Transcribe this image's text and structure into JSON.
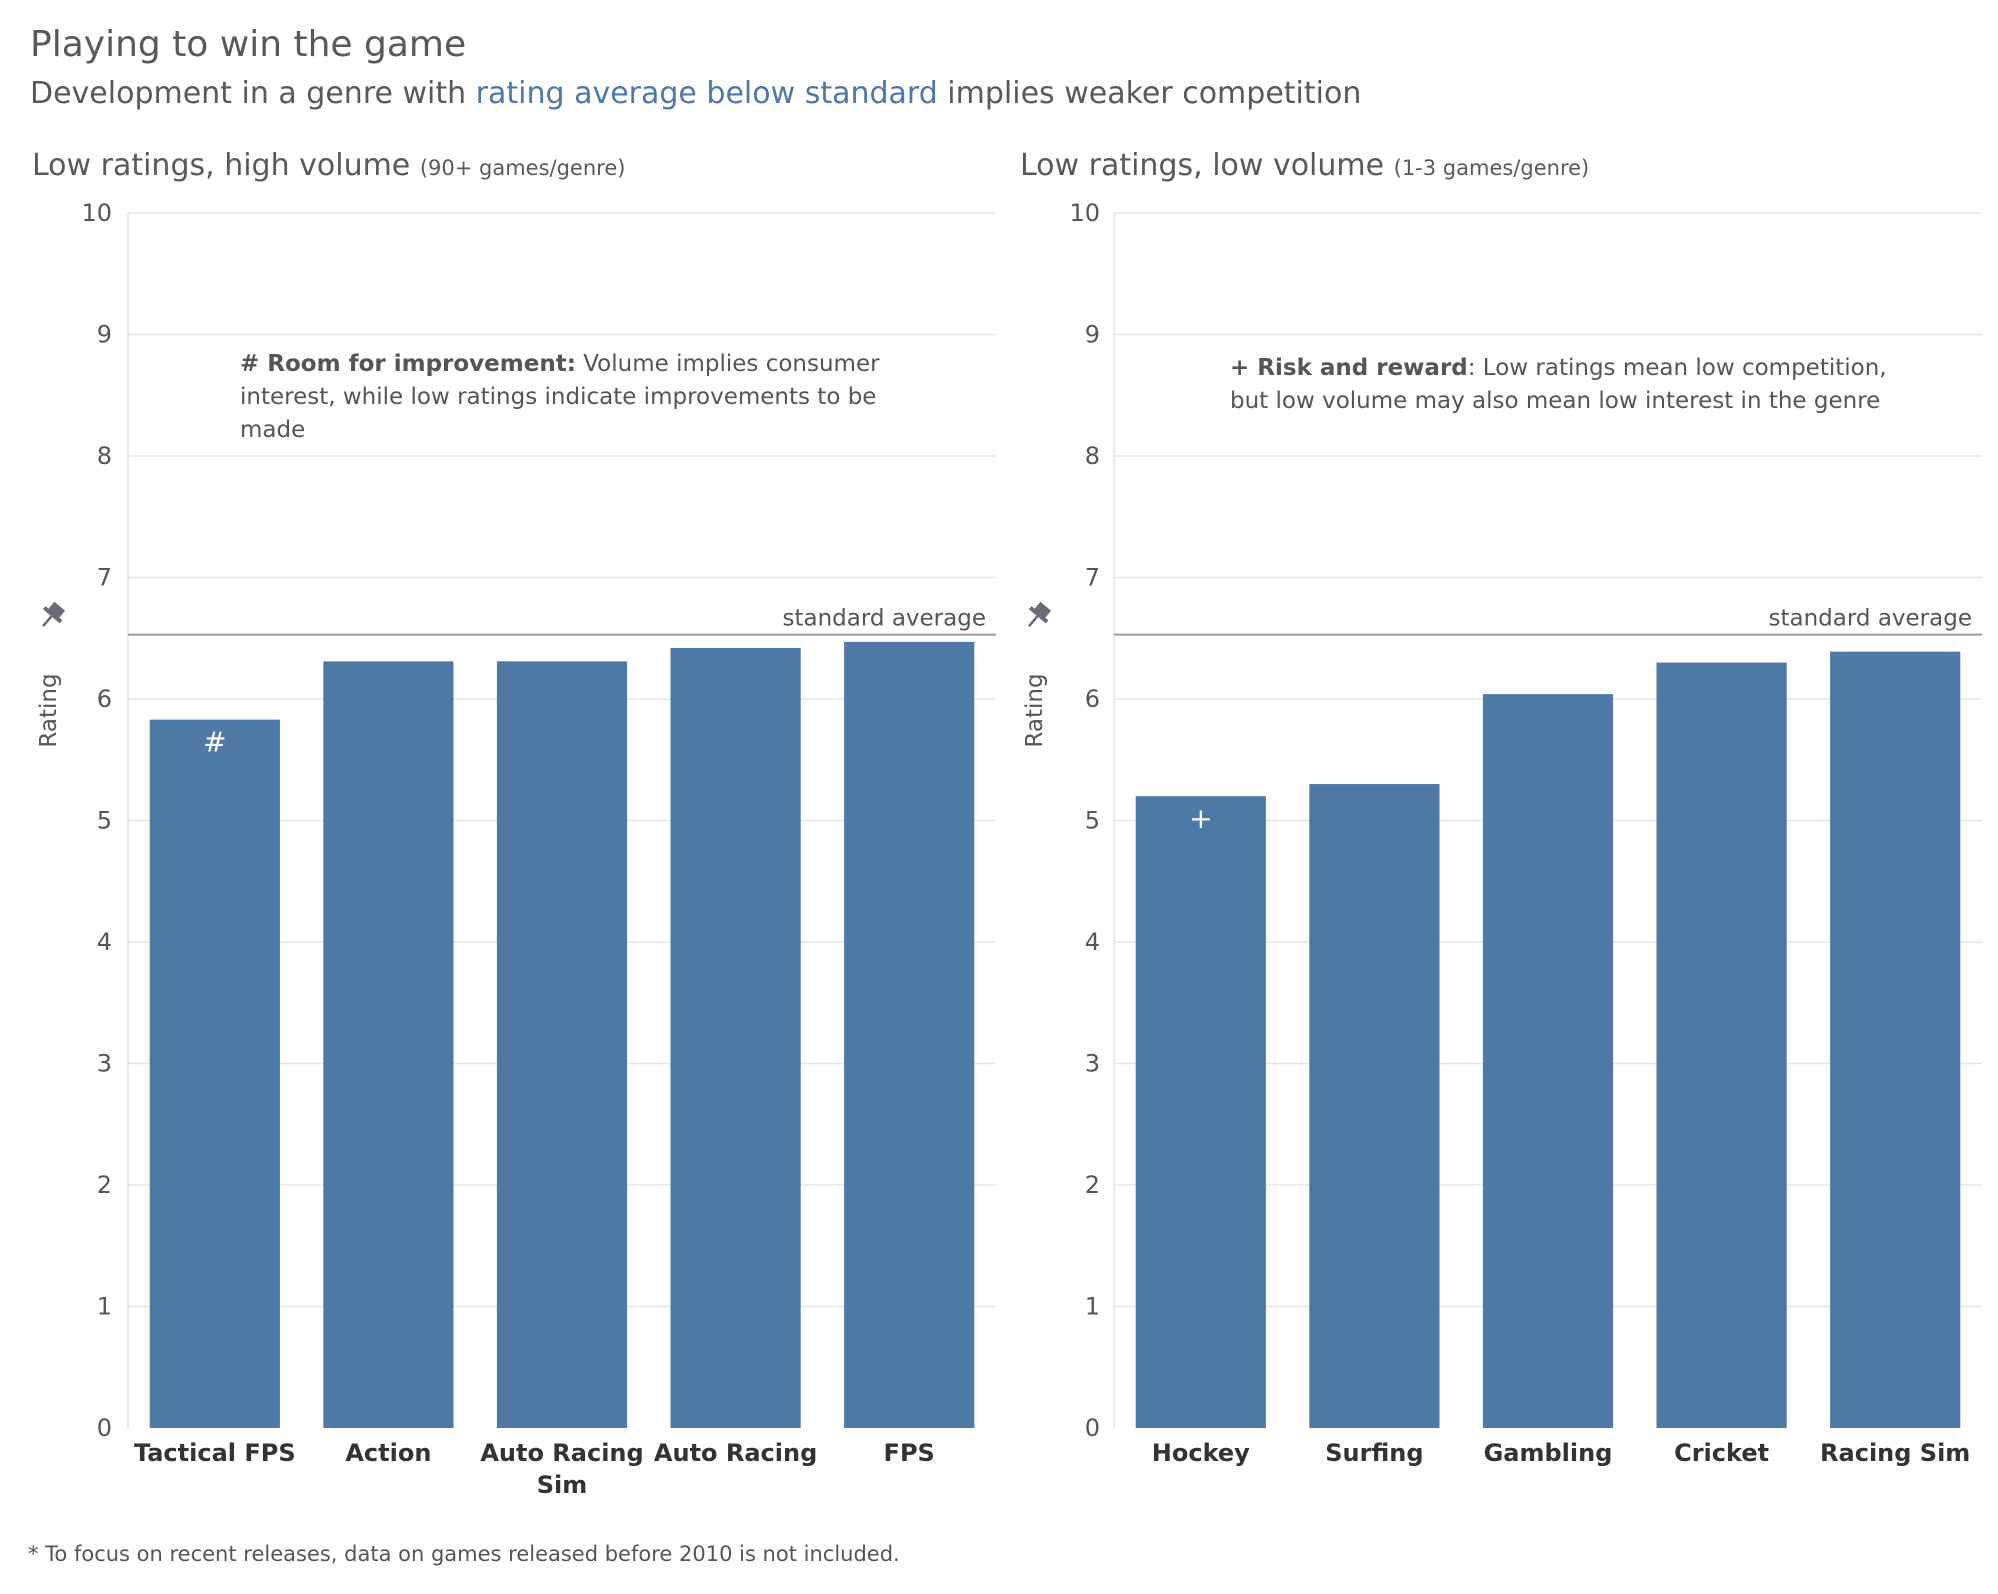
{
  "title": "Playing to win the game",
  "subtitle": {
    "prefix": "Development in a genre with ",
    "highlight": "rating average below standard",
    "suffix": " implies weaker competition"
  },
  "colors": {
    "bar": "#4e79a7",
    "highlight": "#4e79a7",
    "reference_line": "#9a9a9a",
    "gridline": "#e6e6e6",
    "text": "#555555"
  },
  "panels": [
    {
      "title_main": "Low ratings, high volume ",
      "title_small": "(90+ games/genre)",
      "annotation_bold": "# Room for improvement:",
      "annotation_text": " Volume implies consumer interest, while low ratings indicate improvements to be made",
      "reference_label": "standard average",
      "pin_icon": "pin-icon"
    },
    {
      "title_main": "Low ratings, low volume ",
      "title_small": "(1-3 games/genre)",
      "annotation_bold": "+ Risk and reward",
      "annotation_text": ": Low ratings mean low competition, but low volume may also mean low interest in the genre",
      "reference_label": "standard average",
      "pin_icon": "pin-icon"
    }
  ],
  "chart_data": [
    {
      "type": "bar",
      "categories": [
        "Tactical FPS",
        "Action",
        "Auto Racing Sim",
        "Auto Racing",
        "FPS"
      ],
      "values": [
        5.83,
        6.31,
        6.31,
        6.42,
        6.47
      ],
      "marker": {
        "category": "Tactical FPS",
        "symbol": "#"
      },
      "reference_line": {
        "value": 6.53,
        "label": "standard average"
      },
      "ylabel": "Rating",
      "ylim": [
        0,
        10
      ],
      "yticks": [
        0,
        1,
        2,
        3,
        4,
        5,
        6,
        7,
        8,
        9,
        10
      ],
      "grid": true
    },
    {
      "type": "bar",
      "categories": [
        "Hockey",
        "Surfing",
        "Gambling",
        "Cricket",
        "Racing Sim"
      ],
      "values": [
        5.2,
        5.3,
        6.04,
        6.3,
        6.39
      ],
      "marker": {
        "category": "Hockey",
        "symbol": "+"
      },
      "reference_line": {
        "value": 6.53,
        "label": "standard average"
      },
      "ylabel": "Rating",
      "ylim": [
        0,
        10
      ],
      "yticks": [
        0,
        1,
        2,
        3,
        4,
        5,
        6,
        7,
        8,
        9,
        10
      ],
      "grid": true
    }
  ],
  "footnote": "* To focus on recent releases, data on games released before 2010 is not included."
}
